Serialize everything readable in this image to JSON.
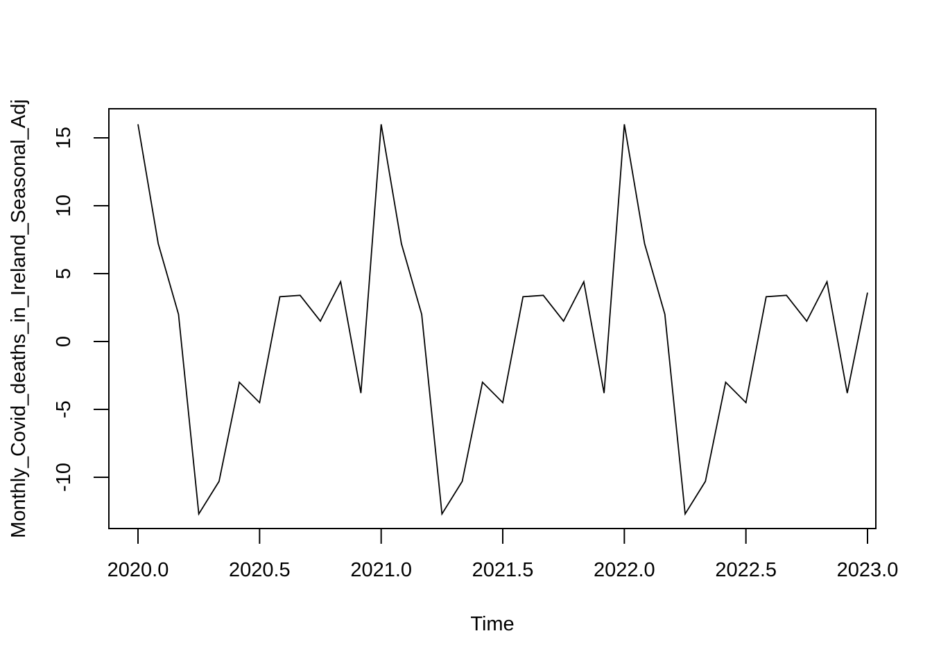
{
  "chart_data": {
    "type": "line",
    "title": "",
    "xlabel": "Time",
    "ylabel": "Monthly_Covid_deaths_in_Ireland_Seasonal_Adj",
    "xlim": [
      2019.94,
      2023.0
    ],
    "ylim": [
      -13.8,
      17.1
    ],
    "x_ticks": [
      2020.0,
      2020.5,
      2021.0,
      2021.5,
      2022.0,
      2022.5,
      2023.0
    ],
    "x_tick_labels": [
      "2020.0",
      "2020.5",
      "2021.0",
      "2021.5",
      "2022.0",
      "2022.5",
      "2023.0"
    ],
    "y_ticks": [
      -10,
      -5,
      0,
      5,
      10,
      15
    ],
    "y_tick_labels": [
      "-10",
      "-5",
      "0",
      "5",
      "10",
      "15"
    ],
    "grid": false,
    "legend": "none",
    "line_color": "#000000",
    "x_start": 2020.0,
    "x_step": 0.08333333,
    "series": [
      {
        "values": [
          16.0,
          7.2,
          2.0,
          -12.7,
          -10.3,
          -3.0,
          -4.5,
          3.3,
          3.4,
          1.5,
          4.4,
          -3.8,
          16.0,
          7.2,
          2.0,
          -12.7,
          -10.3,
          -3.0,
          -4.5,
          3.3,
          3.4,
          1.5,
          4.4,
          -3.8,
          16.0,
          7.2,
          2.0,
          -12.7,
          -10.3,
          -3.0,
          -4.5,
          3.3,
          3.4,
          1.5,
          4.4,
          -3.8,
          3.6
        ]
      }
    ]
  }
}
